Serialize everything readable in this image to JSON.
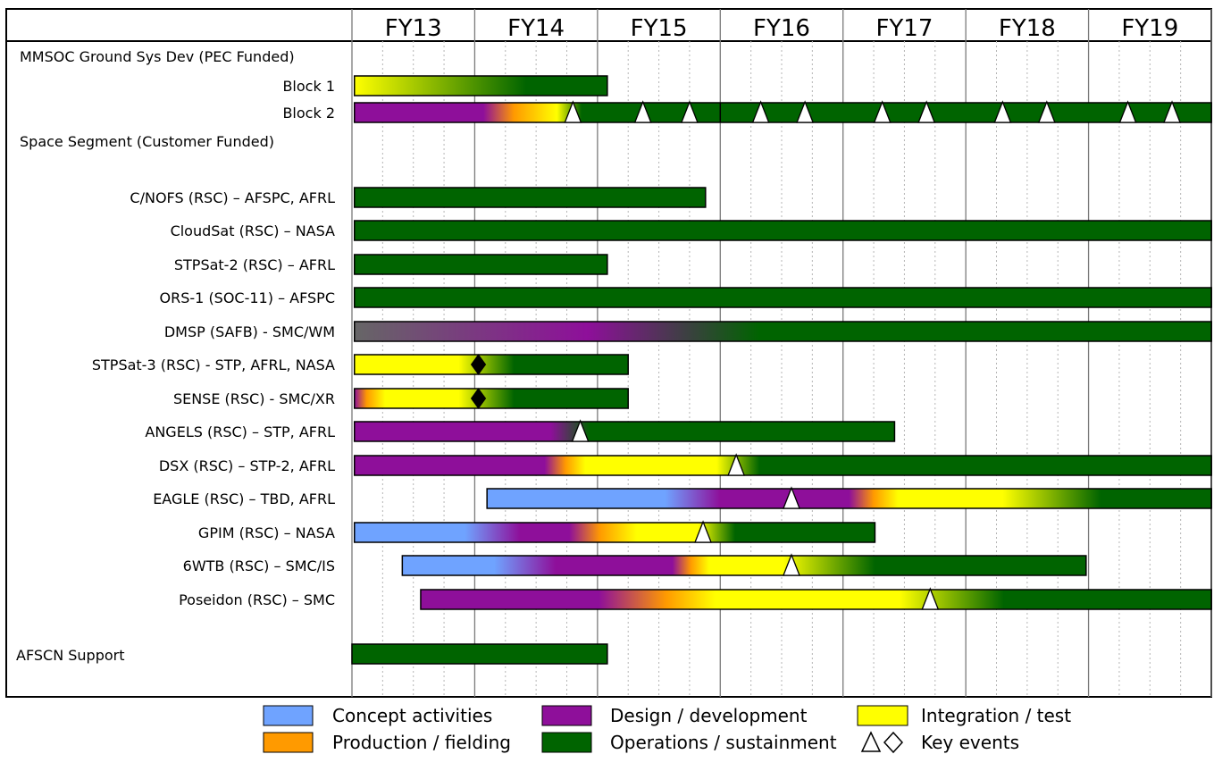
{
  "chart_data": {
    "type": "gantt",
    "fiscal_years": [
      "FY13",
      "FY14",
      "FY15",
      "FY16",
      "FY17",
      "FY18",
      "FY19"
    ],
    "x_range": [
      0,
      7
    ],
    "colors": {
      "concept": "#6fa3ff",
      "design": "#8e0f9a",
      "production": "#ff9a00",
      "integration": "#ffff00",
      "operations": "#006400",
      "legacy": "#666666"
    },
    "sections": [
      {
        "label": "MMSOC Ground Sys Dev (PEC Funded)"
      },
      {
        "label": "Space Segment (Customer Funded)"
      },
      {
        "label": "AFSCN Support"
      }
    ],
    "rows": [
      {
        "label": "Block 1",
        "start": 0.02,
        "end": 2.08,
        "phases": [
          {
            "p": "integration",
            "at": 0.0
          },
          {
            "p": "operations",
            "at": 1.4
          }
        ],
        "events": []
      },
      {
        "label": "Block 2",
        "start": 0.02,
        "end": 7.0,
        "phases": [
          {
            "p": "design",
            "at": 0.0
          },
          {
            "p": "design",
            "at": 1.05
          },
          {
            "p": "production",
            "at": 1.3
          },
          {
            "p": "integration",
            "at": 1.65
          },
          {
            "p": "operations",
            "at": 1.85
          }
        ],
        "events": [
          {
            "type": "triangle",
            "x": 1.8
          },
          {
            "type": "triangle",
            "x": 2.37
          },
          {
            "type": "triangle",
            "x": 2.75
          },
          {
            "type": "triangle",
            "x": 3.33
          },
          {
            "type": "triangle",
            "x": 3.69
          },
          {
            "type": "triangle",
            "x": 4.32
          },
          {
            "type": "triangle",
            "x": 4.68
          },
          {
            "type": "triangle",
            "x": 5.3
          },
          {
            "type": "triangle",
            "x": 5.66
          },
          {
            "type": "triangle",
            "x": 6.32
          },
          {
            "type": "triangle",
            "x": 6.68
          }
        ]
      },
      {
        "label": "C/NOFS (RSC) – AFSPC, AFRL",
        "start": 0.02,
        "end": 2.88,
        "phases": [
          {
            "p": "operations",
            "at": 0.0
          }
        ],
        "events": []
      },
      {
        "label": "CloudSat (RSC) – NASA",
        "start": 0.02,
        "end": 7.0,
        "phases": [
          {
            "p": "operations",
            "at": 0.0
          }
        ],
        "events": []
      },
      {
        "label": "STPSat-2 (RSC) – AFRL",
        "start": 0.02,
        "end": 2.08,
        "phases": [
          {
            "p": "operations",
            "at": 0.0
          }
        ],
        "events": []
      },
      {
        "label": "ORS-1 (SOC-11) – AFSPC",
        "start": 0.02,
        "end": 7.0,
        "phases": [
          {
            "p": "operations",
            "at": 0.0
          }
        ],
        "events": []
      },
      {
        "label": "DMSP (SAFB) - SMC/WM",
        "start": 0.02,
        "end": 7.0,
        "phases": [
          {
            "p": "legacy",
            "at": 0.0
          },
          {
            "p": "design",
            "at": 1.9
          },
          {
            "p": "operations",
            "at": 3.3
          }
        ],
        "events": []
      },
      {
        "label": "STPSat-3 (RSC) - STP, AFRL, NASA",
        "start": 0.02,
        "end": 2.25,
        "phases": [
          {
            "p": "integration",
            "at": 0.0
          },
          {
            "p": "integration",
            "at": 0.85
          },
          {
            "p": "operations",
            "at": 1.3
          }
        ],
        "events": [
          {
            "type": "diamond",
            "x": 1.03
          }
        ]
      },
      {
        "label": "SENSE (RSC) - SMC/XR",
        "start": 0.02,
        "end": 2.25,
        "phases": [
          {
            "p": "design",
            "at": 0.0
          },
          {
            "p": "production",
            "at": 0.1
          },
          {
            "p": "integration",
            "at": 0.25
          },
          {
            "p": "integration",
            "at": 0.85
          },
          {
            "p": "operations",
            "at": 1.3
          }
        ],
        "events": [
          {
            "type": "diamond",
            "x": 1.03
          }
        ]
      },
      {
        "label": "ANGELS (RSC) – STP, AFRL",
        "start": 0.02,
        "end": 4.42,
        "phases": [
          {
            "p": "design",
            "at": 0.0
          },
          {
            "p": "design",
            "at": 1.6
          },
          {
            "p": "operations",
            "at": 1.92
          }
        ],
        "events": [
          {
            "type": "triangle",
            "x": 1.86
          }
        ]
      },
      {
        "label": "DSX (RSC) – STP-2, AFRL",
        "start": 0.02,
        "end": 7.0,
        "phases": [
          {
            "p": "design",
            "at": 0.0
          },
          {
            "p": "design",
            "at": 1.55
          },
          {
            "p": "production",
            "at": 1.72
          },
          {
            "p": "integration",
            "at": 1.88
          },
          {
            "p": "integration",
            "at": 2.95
          },
          {
            "p": "operations",
            "at": 3.3
          }
        ],
        "events": [
          {
            "type": "triangle",
            "x": 3.13
          }
        ]
      },
      {
        "label": "EAGLE (RSC) – TBD, AFRL",
        "start": 1.1,
        "end": 7.0,
        "phases": [
          {
            "p": "concept",
            "at": 0.0
          },
          {
            "p": "concept",
            "at": 1.45
          },
          {
            "p": "design",
            "at": 1.9
          },
          {
            "p": "design",
            "at": 2.95
          },
          {
            "p": "production",
            "at": 3.15
          },
          {
            "p": "integration",
            "at": 3.35
          },
          {
            "p": "integration",
            "at": 4.2
          },
          {
            "p": "operations",
            "at": 5.0
          }
        ],
        "events": [
          {
            "type": "triangle",
            "x": 3.58
          }
        ]
      },
      {
        "label": "GPIM (RSC) – NASA",
        "start": 0.02,
        "end": 4.26,
        "phases": [
          {
            "p": "concept",
            "at": 0.0
          },
          {
            "p": "concept",
            "at": 0.9
          },
          {
            "p": "design",
            "at": 1.35
          },
          {
            "p": "design",
            "at": 1.75
          },
          {
            "p": "production",
            "at": 2.0
          },
          {
            "p": "integration",
            "at": 2.3
          },
          {
            "p": "integration",
            "at": 2.8
          },
          {
            "p": "operations",
            "at": 3.1
          }
        ],
        "events": [
          {
            "type": "triangle",
            "x": 2.86
          }
        ]
      },
      {
        "label": "6WTB (RSC) – SMC/IS",
        "start": 0.41,
        "end": 5.98,
        "phases": [
          {
            "p": "concept",
            "at": 0.0
          },
          {
            "p": "concept",
            "at": 0.75
          },
          {
            "p": "design",
            "at": 1.25
          },
          {
            "p": "design",
            "at": 2.2
          },
          {
            "p": "production",
            "at": 2.35
          },
          {
            "p": "integration",
            "at": 2.5
          },
          {
            "p": "integration",
            "at": 3.1
          },
          {
            "p": "operations",
            "at": 3.85
          }
        ],
        "events": [
          {
            "type": "triangle",
            "x": 3.58
          }
        ]
      },
      {
        "label": "Poseidon (RSC) – SMC",
        "start": 0.56,
        "end": 7.0,
        "phases": [
          {
            "p": "design",
            "at": 0.0
          },
          {
            "p": "design",
            "at": 1.45
          },
          {
            "p": "production",
            "at": 2.0
          },
          {
            "p": "integration",
            "at": 2.4
          },
          {
            "p": "integration",
            "at": 3.9
          },
          {
            "p": "operations",
            "at": 4.75
          }
        ],
        "events": [
          {
            "type": "triangle",
            "x": 4.71
          }
        ]
      },
      {
        "label": "",
        "start": 0.0,
        "end": 2.08,
        "phases": [
          {
            "p": "operations",
            "at": 0.0
          }
        ],
        "events": []
      }
    ],
    "legend": [
      {
        "key": "concept",
        "label": "Concept activities"
      },
      {
        "key": "production",
        "label": "Production / fielding"
      },
      {
        "key": "design",
        "label": "Design / development"
      },
      {
        "key": "operations",
        "label": "Operations / sustainment"
      },
      {
        "key": "integration",
        "label": "Integration / test"
      },
      {
        "key": "events",
        "label": "Key events"
      }
    ]
  }
}
